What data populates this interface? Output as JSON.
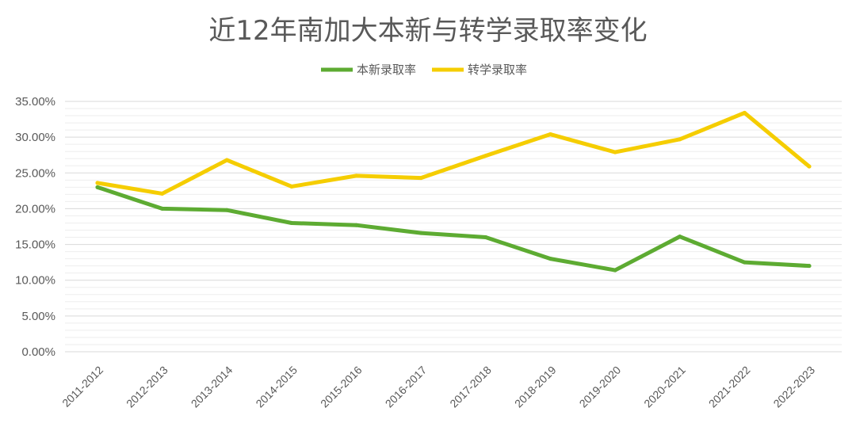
{
  "chart_data": {
    "type": "line",
    "title": "近12年南加大本新与转学录取率变化",
    "categories": [
      "2011-2012",
      "2012-2013",
      "2013-2014",
      "2014-2015",
      "2015-2016",
      "2016-2017",
      "2017-2018",
      "2018-2019",
      "2019-2020",
      "2020-2021",
      "2021-2022",
      "2022-2023"
    ],
    "series": [
      {
        "name": "本新录取率",
        "color": "#5dab32",
        "values": [
          23.0,
          20.0,
          19.8,
          18.0,
          17.7,
          16.6,
          16.0,
          13.0,
          11.4,
          16.1,
          12.5,
          12.0
        ]
      },
      {
        "name": "转学录取率",
        "color": "#f5cd00",
        "values": [
          23.6,
          22.1,
          26.8,
          23.1,
          24.6,
          24.3,
          27.4,
          30.4,
          27.9,
          29.7,
          33.4,
          25.9
        ]
      }
    ],
    "ylim": [
      0,
      35
    ],
    "yticks": [
      "0.00%",
      "5.00%",
      "10.00%",
      "15.00%",
      "20.00%",
      "25.00%",
      "30.00%",
      "35.00%"
    ],
    "grid": true,
    "legend_position": "top"
  }
}
